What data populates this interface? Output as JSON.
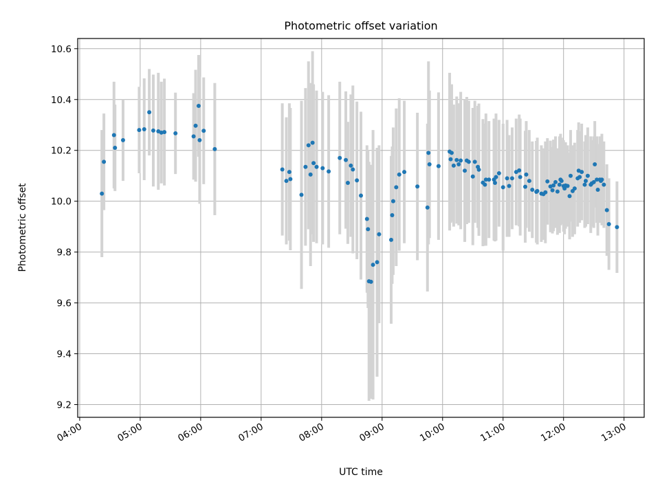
{
  "chart_data": {
    "type": "scatter",
    "title": "Photometric offset variation",
    "xlabel": "UTC time",
    "ylabel": "Photometric offset",
    "x_ticks": [
      "04:00",
      "05:00",
      "06:00",
      "07:00",
      "08:00",
      "09:00",
      "10:00",
      "11:00",
      "12:00",
      "13:00"
    ],
    "y_ticks": [
      "9.2",
      "9.4",
      "9.6",
      "9.8",
      "10.0",
      "10.2",
      "10.4",
      "10.6"
    ],
    "xlim": [
      "03:58",
      "13:20"
    ],
    "ylim": [
      9.15,
      10.64
    ],
    "grid": true,
    "colors": {
      "point": "#1f77b4",
      "errorbar": "#d3d3d3"
    },
    "series": [
      {
        "marker": "dot-with-errorbar",
        "x": [
          "04:22",
          "04:24",
          "04:34",
          "04:35",
          "04:43",
          "04:59",
          "05:04",
          "05:09",
          "05:13",
          "05:18",
          "05:21",
          "05:24",
          "05:35",
          "05:53",
          "05:55",
          "05:58",
          "05:59",
          "06:03",
          "06:14",
          "07:21",
          "07:25",
          "07:28",
          "07:29",
          "07:40",
          "07:44",
          "07:47",
          "07:49",
          "07:51",
          "07:52",
          "07:55",
          "08:01",
          "08:07",
          "08:18",
          "08:24",
          "08:26",
          "08:29",
          "08:31",
          "08:35",
          "08:39",
          "08:45",
          "08:46",
          "08:47",
          "08:49",
          "08:51",
          "08:55",
          "08:57",
          "09:09",
          "09:10",
          "09:11",
          "09:14",
          "09:17",
          "09:22",
          "09:35",
          "09:45",
          "09:46",
          "09:47",
          "09:56",
          "10:07",
          "10:08",
          "10:09",
          "10:11",
          "10:14",
          "10:16",
          "10:18",
          "10:22",
          "10:24",
          "10:26",
          "10:30",
          "10:32",
          "10:35",
          "10:36",
          "10:40",
          "10:42",
          "10:43",
          "10:46",
          "10:51",
          "10:52",
          "10:53",
          "10:56",
          "11:00",
          "11:04",
          "11:06",
          "11:09",
          "11:13",
          "11:16",
          "11:17",
          "11:22",
          "11:23",
          "11:26",
          "11:29",
          "11:33",
          "11:34",
          "11:38",
          "11:40",
          "11:42",
          "11:44",
          "11:47",
          "11:49",
          "11:50",
          "11:52",
          "11:54",
          "11:56",
          "11:57",
          "11:58",
          "12:00",
          "12:01",
          "12:02",
          "12:04",
          "12:06",
          "12:07",
          "12:09",
          "12:11",
          "12:14",
          "12:15",
          "12:16",
          "12:18",
          "12:21",
          "12:22",
          "12:24",
          "12:27",
          "12:28",
          "12:30",
          "12:31",
          "12:33",
          "12:34",
          "12:36",
          "12:37",
          "12:38",
          "12:40",
          "12:43",
          "12:45",
          "12:53"
        ],
        "y": [
          10.03,
          10.155,
          10.26,
          10.21,
          10.24,
          10.28,
          10.283,
          10.35,
          10.278,
          10.275,
          10.27,
          10.272,
          10.267,
          10.255,
          10.297,
          10.375,
          10.24,
          10.277,
          10.205,
          10.125,
          10.08,
          10.115,
          10.087,
          10.025,
          10.135,
          10.22,
          10.105,
          10.23,
          10.15,
          10.135,
          10.13,
          10.117,
          10.17,
          10.162,
          10.072,
          10.14,
          10.125,
          10.082,
          10.022,
          9.93,
          9.89,
          9.685,
          9.683,
          9.75,
          9.76,
          9.87,
          9.848,
          9.945,
          10.0,
          10.055,
          10.105,
          10.115,
          10.058,
          9.975,
          10.19,
          10.145,
          10.138,
          10.195,
          10.165,
          10.19,
          10.14,
          10.162,
          10.145,
          10.16,
          10.12,
          10.16,
          10.155,
          10.097,
          10.155,
          10.135,
          10.124,
          10.073,
          10.065,
          10.085,
          10.085,
          10.085,
          10.072,
          10.095,
          10.11,
          10.055,
          10.09,
          10.06,
          10.09,
          10.115,
          10.121,
          10.095,
          10.057,
          10.105,
          10.08,
          10.045,
          10.037,
          10.04,
          10.03,
          10.028,
          10.035,
          10.078,
          10.058,
          10.043,
          10.062,
          10.075,
          10.038,
          10.065,
          10.085,
          10.08,
          10.06,
          10.05,
          10.062,
          10.06,
          10.02,
          10.1,
          10.04,
          10.05,
          10.09,
          10.12,
          10.095,
          10.115,
          10.065,
          10.08,
          10.1,
          10.065,
          10.07,
          10.075,
          10.145,
          10.085,
          10.045,
          10.085,
          10.08,
          10.085,
          10.065,
          9.965,
          9.91,
          9.898
        ],
        "yerr": [
          0.25,
          0.19,
          0.21,
          0.17,
          0.16,
          0.17,
          0.2,
          0.17,
          0.22,
          0.23,
          0.2,
          0.21,
          0.16,
          0.17,
          0.22,
          0.2,
          0.25,
          0.21,
          0.26,
          0.26,
          0.25,
          0.27,
          0.28,
          0.37,
          0.31,
          0.33,
          0.36,
          0.36,
          0.31,
          0.3,
          0.3,
          0.3,
          0.3,
          0.27,
          0.24,
          0.28,
          0.33,
          0.31,
          0.33,
          0.29,
          0.31,
          0.47,
          0.46,
          0.53,
          0.45,
          0.35,
          0.33,
          0.27,
          0.29,
          0.31,
          0.3,
          0.28,
          0.29,
          0.33,
          0.36,
          0.29,
          0.29,
          0.31,
          0.25,
          0.27,
          0.24,
          0.25,
          0.24,
          0.27,
          0.28,
          0.25,
          0.24,
          0.27,
          0.24,
          0.24,
          0.26,
          0.25,
          0.24,
          0.26,
          0.23,
          0.24,
          0.23,
          0.25,
          0.21,
          0.25,
          0.23,
          0.2,
          0.2,
          0.21,
          0.22,
          0.23,
          0.22,
          0.21,
          0.2,
          0.19,
          0.2,
          0.21,
          0.19,
          0.18,
          0.2,
          0.17,
          0.18,
          0.17,
          0.18,
          0.18,
          0.17,
          0.19,
          0.18,
          0.17,
          0.18,
          0.18,
          0.17,
          0.16,
          0.17,
          0.18,
          0.18,
          0.18,
          0.19,
          0.19,
          0.18,
          0.19,
          0.17,
          0.18,
          0.19,
          0.19,
          0.17,
          0.18,
          0.17,
          0.17,
          0.18,
          0.17,
          0.16,
          0.18,
          0.17,
          0.18,
          0.18,
          0.18
        ]
      }
    ]
  }
}
